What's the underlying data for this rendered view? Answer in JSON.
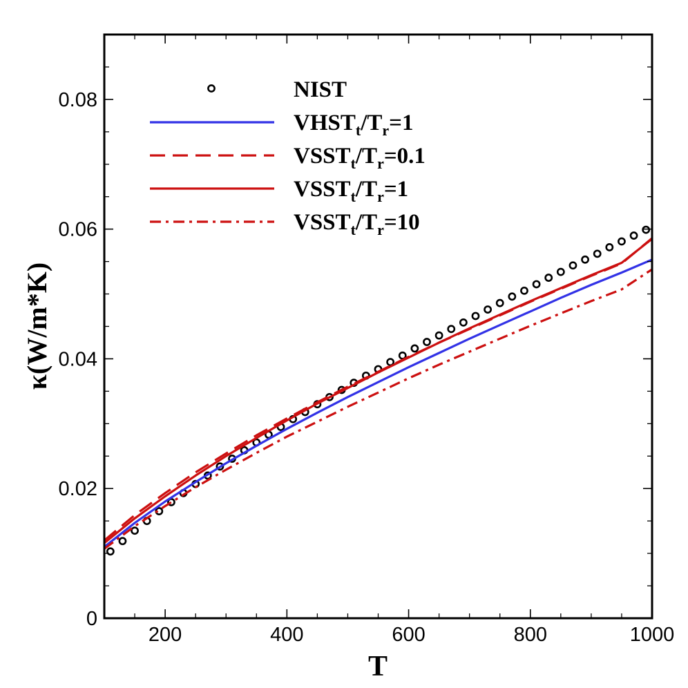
{
  "chart_data": {
    "type": "line",
    "xlabel": "T",
    "ylabel": "κ(W/m*K)",
    "xlim": [
      100,
      1000
    ],
    "ylim": [
      0,
      0.09
    ],
    "xticks": [
      200,
      400,
      600,
      800,
      1000
    ],
    "xtick_labels": [
      "200",
      "400",
      "600",
      "800",
      "1000"
    ],
    "xminor_step": 50,
    "yticks": [
      0,
      0.02,
      0.04,
      0.06,
      0.08
    ],
    "ytick_labels": [
      "0",
      "0.02",
      "0.04",
      "0.06",
      "0.08"
    ],
    "yminor_step": 0.005,
    "grid": false,
    "legend_position": "top-left",
    "colors": {
      "blue": "#3232e6",
      "red": "#cc1010",
      "black": "#000000"
    },
    "series": [
      {
        "name": "NIST",
        "legend_parts": {
          "main": "NIST"
        },
        "style": "markers",
        "marker": "open-circle",
        "color": "#000000",
        "x": [
          110,
          130,
          150,
          170,
          190,
          210,
          230,
          250,
          270,
          290,
          310,
          330,
          350,
          370,
          390,
          410,
          430,
          450,
          470,
          490,
          510,
          530,
          550,
          570,
          590,
          610,
          630,
          650,
          670,
          690,
          710,
          730,
          750,
          770,
          790,
          810,
          830,
          850,
          870,
          890,
          910,
          930,
          950,
          970,
          990
        ],
        "y": [
          0.0103,
          0.0119,
          0.0135,
          0.015,
          0.0165,
          0.0179,
          0.0193,
          0.0207,
          0.022,
          0.0234,
          0.0246,
          0.0259,
          0.0271,
          0.0283,
          0.0295,
          0.0307,
          0.0318,
          0.033,
          0.0341,
          0.0352,
          0.0363,
          0.0374,
          0.0384,
          0.0395,
          0.0405,
          0.0416,
          0.0426,
          0.0436,
          0.0446,
          0.0456,
          0.0466,
          0.0476,
          0.0486,
          0.0496,
          0.0505,
          0.0515,
          0.0525,
          0.0534,
          0.0544,
          0.0553,
          0.0562,
          0.0572,
          0.0581,
          0.059,
          0.0599
        ]
      },
      {
        "name": "VHSTt/Tr=1",
        "legend_parts": {
          "main1": "VHST",
          "sub1": "t",
          "main2": "/T",
          "sub2": "r",
          "main3": "=1"
        },
        "style": "solid",
        "color": "#3232e6",
        "x": [
          100,
          150,
          200,
          250,
          300,
          350,
          400,
          450,
          500,
          550,
          600,
          650,
          700,
          750,
          800,
          850,
          900,
          950,
          1000
        ],
        "y": [
          0.011,
          0.0147,
          0.018,
          0.021,
          0.0239,
          0.0266,
          0.0292,
          0.0317,
          0.0341,
          0.0364,
          0.0387,
          0.0409,
          0.0431,
          0.0452,
          0.0473,
          0.0494,
          0.0514,
          0.0533,
          0.0553
        ]
      },
      {
        "name": "VSSTt/Tr=0.1",
        "legend_parts": {
          "main1": "VSST",
          "sub1": "t",
          "main2": "/T",
          "sub2": "r",
          "main3": "=0.1"
        },
        "style": "dashed",
        "color": "#cc1010",
        "x": [
          100,
          150,
          200,
          250,
          300,
          350,
          400,
          450,
          500,
          550,
          600,
          650,
          700,
          750,
          800,
          850,
          900,
          950,
          1000
        ],
        "y": [
          0.012,
          0.0159,
          0.0193,
          0.0225,
          0.0254,
          0.0282,
          0.0308,
          0.0333,
          0.0357,
          0.038,
          0.0403,
          0.0425,
          0.0446,
          0.0467,
          0.0488,
          0.0508,
          0.0528,
          0.0547,
          0.0586
        ]
      },
      {
        "name": "VSSTt/Tr=1",
        "legend_parts": {
          "main1": "VSST",
          "sub1": "t",
          "main2": "/T",
          "sub2": "r",
          "main3": "=1"
        },
        "style": "solid",
        "color": "#cc1010",
        "x": [
          100,
          150,
          200,
          250,
          300,
          350,
          400,
          450,
          500,
          550,
          600,
          650,
          700,
          750,
          800,
          850,
          900,
          950,
          1000
        ],
        "y": [
          0.0116,
          0.0154,
          0.0188,
          0.022,
          0.025,
          0.0278,
          0.0305,
          0.0331,
          0.0355,
          0.0379,
          0.0402,
          0.0425,
          0.0447,
          0.0468,
          0.0489,
          0.0509,
          0.0529,
          0.0548,
          0.0585
        ]
      },
      {
        "name": "VSSTt/Tr=10",
        "legend_parts": {
          "main1": "VSST",
          "sub1": "t",
          "main2": "/T",
          "sub2": "r",
          "main3": "=10"
        },
        "style": "dashdot",
        "color": "#cc1010",
        "x": [
          100,
          150,
          200,
          250,
          300,
          350,
          400,
          450,
          500,
          550,
          600,
          650,
          700,
          750,
          800,
          850,
          900,
          950,
          1000
        ],
        "y": [
          0.0107,
          0.0142,
          0.0173,
          0.0202,
          0.0229,
          0.0255,
          0.028,
          0.0303,
          0.0326,
          0.0348,
          0.037,
          0.0391,
          0.0411,
          0.0431,
          0.0451,
          0.047,
          0.0489,
          0.0507,
          0.0538
        ]
      }
    ]
  }
}
